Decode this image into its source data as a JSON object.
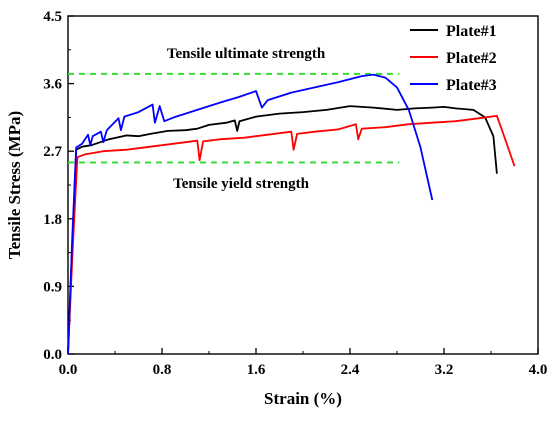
{
  "chart_data": {
    "type": "line",
    "title": "",
    "xlabel": "Strain (%)",
    "ylabel": "Tensile Stress (MPa)",
    "xlim": [
      0.0,
      4.0
    ],
    "ylim": [
      0.0,
      4.5
    ],
    "xticks": [
      "0.0",
      "0.8",
      "1.6",
      "2.4",
      "3.2",
      "4.0"
    ],
    "yticks": [
      "0.0",
      "0.9",
      "1.8",
      "2.7",
      "3.6",
      "4.5"
    ],
    "grid": false,
    "legend_position": "top-right",
    "annotations": [
      {
        "id": "uts",
        "text": "Tensile ultimate strength",
        "y": 3.73,
        "x_range": [
          0.0,
          2.82
        ],
        "color": "#33dd33",
        "style": "dashed"
      },
      {
        "id": "tys",
        "text": "Tensile yield strength",
        "y": 2.55,
        "x_range": [
          0.0,
          2.82
        ],
        "color": "#33dd33",
        "style": "dashed"
      }
    ],
    "series": [
      {
        "name": "Plate#1",
        "color": "#000000",
        "points": [
          [
            0.0,
            0.0
          ],
          [
            0.035,
            1.4
          ],
          [
            0.07,
            2.72
          ],
          [
            0.12,
            2.76
          ],
          [
            0.2,
            2.78
          ],
          [
            0.35,
            2.86
          ],
          [
            0.5,
            2.91
          ],
          [
            0.6,
            2.9
          ],
          [
            0.7,
            2.93
          ],
          [
            0.85,
            2.97
          ],
          [
            1.0,
            2.98
          ],
          [
            1.1,
            3.0
          ],
          [
            1.2,
            3.05
          ],
          [
            1.35,
            3.08
          ],
          [
            1.42,
            3.11
          ],
          [
            1.44,
            2.97
          ],
          [
            1.46,
            3.1
          ],
          [
            1.6,
            3.16
          ],
          [
            1.8,
            3.2
          ],
          [
            2.0,
            3.22
          ],
          [
            2.2,
            3.25
          ],
          [
            2.4,
            3.3
          ],
          [
            2.6,
            3.28
          ],
          [
            2.8,
            3.25
          ],
          [
            2.95,
            3.27
          ],
          [
            3.1,
            3.28
          ],
          [
            3.2,
            3.29
          ],
          [
            3.3,
            3.27
          ],
          [
            3.45,
            3.25
          ],
          [
            3.55,
            3.15
          ],
          [
            3.62,
            2.9
          ],
          [
            3.65,
            2.4
          ]
        ]
      },
      {
        "name": "Plate#2",
        "color": "#ff0000",
        "points": [
          [
            0.0,
            0.0
          ],
          [
            0.04,
            1.4
          ],
          [
            0.08,
            2.62
          ],
          [
            0.15,
            2.66
          ],
          [
            0.3,
            2.7
          ],
          [
            0.5,
            2.72
          ],
          [
            0.7,
            2.76
          ],
          [
            0.9,
            2.8
          ],
          [
            1.1,
            2.84
          ],
          [
            1.12,
            2.58
          ],
          [
            1.15,
            2.83
          ],
          [
            1.3,
            2.86
          ],
          [
            1.5,
            2.88
          ],
          [
            1.7,
            2.92
          ],
          [
            1.9,
            2.96
          ],
          [
            1.92,
            2.72
          ],
          [
            1.95,
            2.93
          ],
          [
            2.1,
            2.96
          ],
          [
            2.3,
            2.99
          ],
          [
            2.45,
            3.06
          ],
          [
            2.47,
            2.86
          ],
          [
            2.5,
            3.0
          ],
          [
            2.7,
            3.02
          ],
          [
            2.9,
            3.06
          ],
          [
            3.1,
            3.08
          ],
          [
            3.3,
            3.1
          ],
          [
            3.5,
            3.14
          ],
          [
            3.65,
            3.17
          ],
          [
            3.7,
            2.95
          ],
          [
            3.8,
            2.5
          ]
        ]
      },
      {
        "name": "Plate#3",
        "color": "#0000ff",
        "points": [
          [
            0.0,
            0.0
          ],
          [
            0.035,
            1.5
          ],
          [
            0.07,
            2.75
          ],
          [
            0.12,
            2.8
          ],
          [
            0.17,
            2.92
          ],
          [
            0.19,
            2.78
          ],
          [
            0.21,
            2.9
          ],
          [
            0.28,
            2.96
          ],
          [
            0.3,
            2.82
          ],
          [
            0.33,
            2.98
          ],
          [
            0.43,
            3.14
          ],
          [
            0.45,
            2.98
          ],
          [
            0.48,
            3.16
          ],
          [
            0.6,
            3.22
          ],
          [
            0.72,
            3.32
          ],
          [
            0.74,
            3.08
          ],
          [
            0.78,
            3.3
          ],
          [
            0.82,
            3.1
          ],
          [
            0.9,
            3.15
          ],
          [
            1.1,
            3.25
          ],
          [
            1.3,
            3.35
          ],
          [
            1.45,
            3.42
          ],
          [
            1.6,
            3.5
          ],
          [
            1.65,
            3.28
          ],
          [
            1.7,
            3.38
          ],
          [
            1.9,
            3.48
          ],
          [
            2.1,
            3.55
          ],
          [
            2.3,
            3.62
          ],
          [
            2.5,
            3.7
          ],
          [
            2.6,
            3.72
          ],
          [
            2.7,
            3.68
          ],
          [
            2.8,
            3.55
          ],
          [
            2.9,
            3.25
          ],
          [
            3.0,
            2.75
          ],
          [
            3.1,
            2.05
          ]
        ]
      }
    ]
  }
}
